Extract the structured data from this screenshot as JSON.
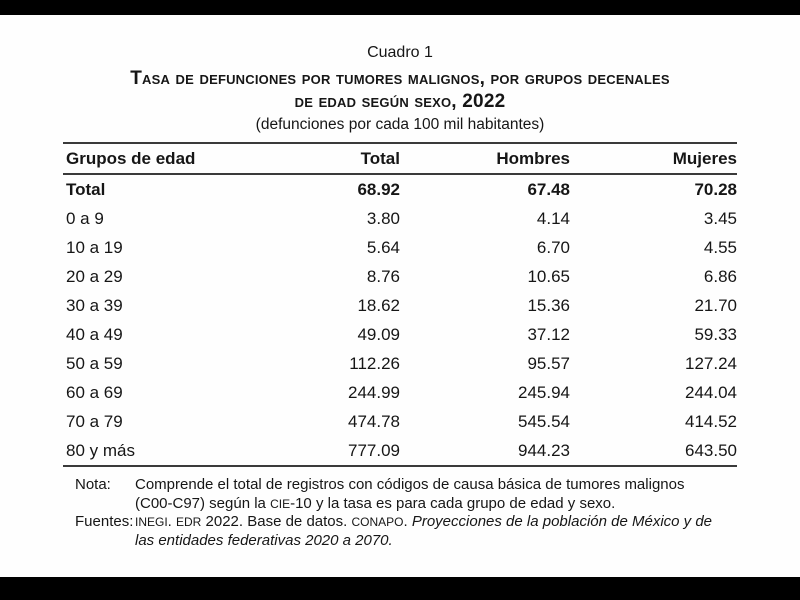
{
  "doc": {
    "caption": "Cuadro 1",
    "title_line1": "Tasa de defunciones por tumores malignos, por grupos decenales",
    "title_line2": "de edad según sexo, ",
    "title_year": "2022",
    "subtitle": "(defunciones por cada 100 mil habitantes)"
  },
  "table": {
    "headers": [
      "Grupos de edad",
      "Total",
      "Hombres",
      "Mujeres"
    ],
    "rows": [
      {
        "grupo": "Total",
        "total": "68.92",
        "hombres": "67.48",
        "mujeres": "70.28"
      },
      {
        "grupo": "0 a 9",
        "total": "3.80",
        "hombres": "4.14",
        "mujeres": "3.45"
      },
      {
        "grupo": "10 a 19",
        "total": "5.64",
        "hombres": "6.70",
        "mujeres": "4.55"
      },
      {
        "grupo": "20 a 29",
        "total": "8.76",
        "hombres": "10.65",
        "mujeres": "6.86"
      },
      {
        "grupo": "30 a 39",
        "total": "18.62",
        "hombres": "15.36",
        "mujeres": "21.70"
      },
      {
        "grupo": "40 a 49",
        "total": "49.09",
        "hombres": "37.12",
        "mujeres": "59.33"
      },
      {
        "grupo": "50 a 59",
        "total": "112.26",
        "hombres": "95.57",
        "mujeres": "127.24"
      },
      {
        "grupo": "60 a 69",
        "total": "244.99",
        "hombres": "245.94",
        "mujeres": "244.04"
      },
      {
        "grupo": "70 a 79",
        "total": "474.78",
        "hombres": "545.54",
        "mujeres": "414.52"
      },
      {
        "grupo": "80 y más",
        "total": "777.09",
        "hombres": "944.23",
        "mujeres": "643.50"
      }
    ]
  },
  "note": {
    "label": "Nota:",
    "line1": "Comprende el total de registros con códigos de causa básica de tumores malignos",
    "line2_pre": "(C00-C97) según la ",
    "line2_acro": "CIE",
    "line2_post": "-10 y la tasa es para cada grupo de edad y sexo."
  },
  "sources": {
    "label": "Fuentes:",
    "acro1": "INEGI",
    "sep1": ". ",
    "acro2": "EDR",
    "seg1": " 2022. Base de datos. ",
    "acro3": "CONAPO",
    "sep2": ". ",
    "italic_line1": "Proyecciones de la población de México y de",
    "italic_line2": "las entidades federativas 2020 a 2070."
  },
  "colors": {
    "frame_bg": "#000000",
    "page_bg": "#fefefe",
    "rule": "#3a3a3a",
    "text": "#161616"
  }
}
